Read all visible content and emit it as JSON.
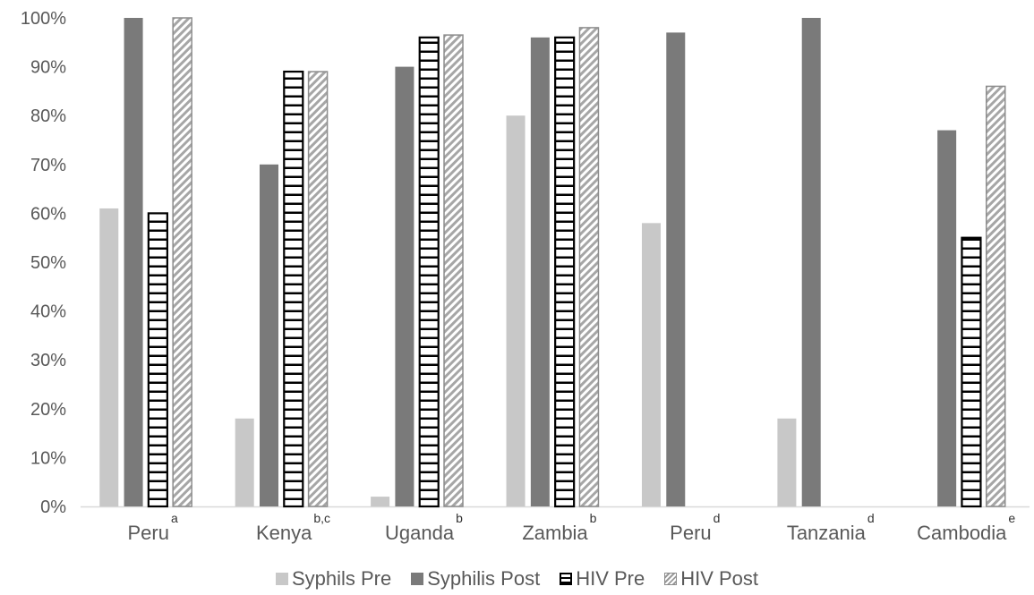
{
  "chart_data": {
    "type": "bar",
    "categories": [
      "Peru",
      "Kenya",
      "Uganda",
      "Zambia",
      "Peru",
      "Tanzania",
      "Cambodia"
    ],
    "category_superscripts": [
      "a",
      "b,c",
      "b",
      "b",
      "d",
      "d",
      "e"
    ],
    "series": [
      {
        "name": "Syphils Pre",
        "values": [
          61,
          18,
          2,
          80,
          58,
          18,
          null
        ],
        "color": "#c8c8c8",
        "pattern": "solid"
      },
      {
        "name": "Syphilis Post",
        "values": [
          100,
          70,
          90,
          96,
          97,
          100,
          77
        ],
        "color": "#7a7a7a",
        "pattern": "solid"
      },
      {
        "name": "HIV Pre",
        "values": [
          60,
          89,
          96,
          96,
          null,
          null,
          55
        ],
        "color": "#000000",
        "pattern": "horizontal-lines"
      },
      {
        "name": "HIV Post",
        "values": [
          100,
          89,
          96.5,
          98,
          null,
          null,
          86
        ],
        "color": "#9a9a9a",
        "pattern": "diagonal-stripes"
      }
    ],
    "ylim": [
      0,
      100
    ],
    "yticks": [
      "0%",
      "10%",
      "20%",
      "30%",
      "40%",
      "50%",
      "60%",
      "70%",
      "80%",
      "90%",
      "100%"
    ],
    "title": "",
    "xlabel": "",
    "ylabel": "",
    "grid": false,
    "legend_position": "bottom"
  }
}
